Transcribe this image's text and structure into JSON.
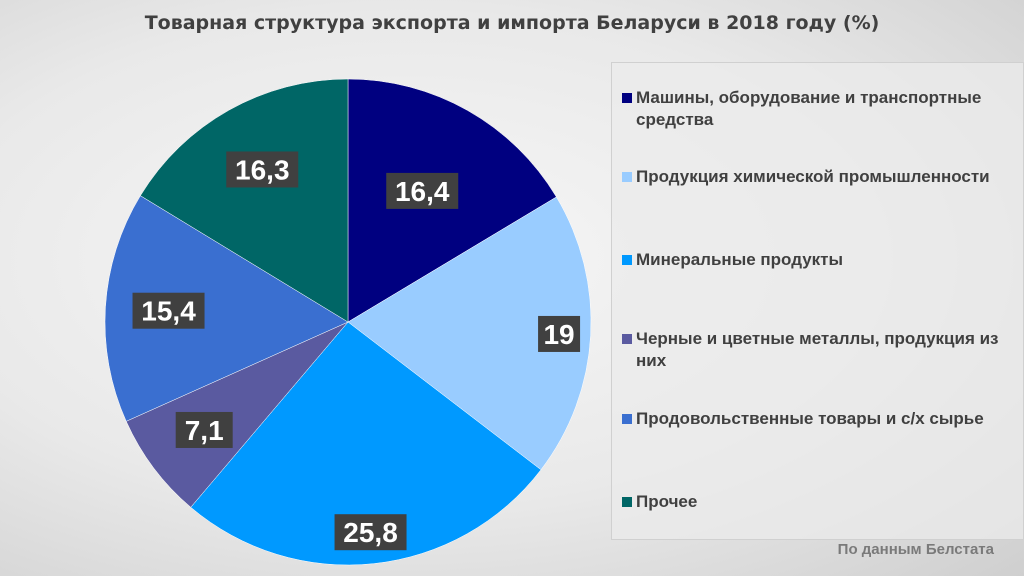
{
  "chart_data": {
    "type": "pie",
    "title": "Товарная структура экспорта и импорта Беларуси в 2018 году (%)",
    "slices": [
      {
        "label": "Машины, оборудование и транспортные средства",
        "value": 16.4,
        "display": "16,4",
        "color": "#000080"
      },
      {
        "label": "Продукция химической промышленности",
        "value": 19,
        "display": "19",
        "color": "#99ccff"
      },
      {
        "label": "Минеральные продукты",
        "value": 25.8,
        "display": "25,8",
        "color": "#0099ff"
      },
      {
        "label": "Черные и цветные металлы, продукция из них",
        "value": 7.1,
        "display": "7,1",
        "color": "#5a5aa0"
      },
      {
        "label": "Продовольственные товары и с/х сырье",
        "value": 15.4,
        "display": "15,4",
        "color": "#3a6fd0"
      },
      {
        "label": "Прочее",
        "value": 16.3,
        "display": "16,3",
        "color": "#006666"
      }
    ],
    "legend_position": "right",
    "data_labels": true
  },
  "source_note": "По данным Белстата"
}
